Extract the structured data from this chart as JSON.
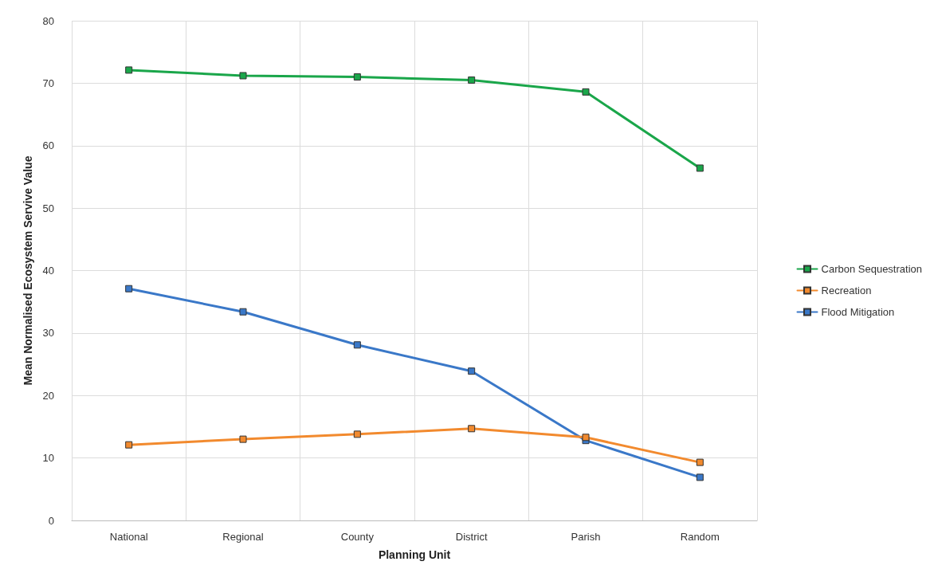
{
  "chart_data": {
    "type": "line",
    "xlabel": "Planning Unit",
    "ylabel": "Mean Normalised Ecosystem Servive Value",
    "categories": [
      "National",
      "Regional",
      "County",
      "District",
      "Parish",
      "Random"
    ],
    "series": [
      {
        "name": "Carbon Sequestration",
        "color": "#1aa64a",
        "values": [
          72.1,
          71.2,
          71.0,
          70.5,
          68.6,
          56.4
        ]
      },
      {
        "name": "Recreation",
        "color": "#f28a2e",
        "values": [
          12.1,
          13.0,
          13.8,
          14.7,
          13.3,
          9.3
        ]
      },
      {
        "name": "Flood Mitigation",
        "color": "#3a78c8",
        "values": [
          37.1,
          33.4,
          28.1,
          23.9,
          12.8,
          6.9
        ]
      }
    ],
    "ylim": [
      0,
      80
    ],
    "yticks": [
      0,
      10,
      20,
      30,
      40,
      50,
      60,
      70,
      80
    ],
    "grid": true,
    "legend": "right",
    "marker": "square",
    "line_style": "solid"
  }
}
